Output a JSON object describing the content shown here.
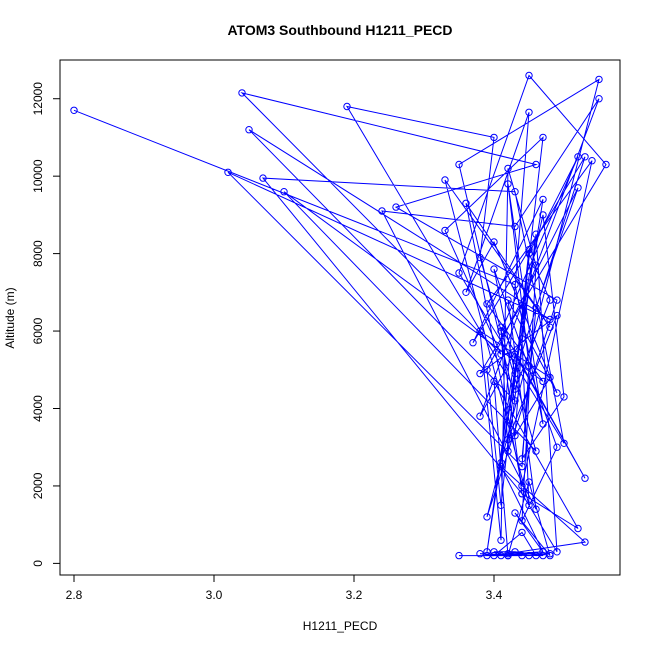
{
  "chart_data": {
    "type": "line",
    "title": "ATOM3 Southbound H1211_PECD",
    "xlabel": "H1211_PECD",
    "ylabel": "Altitude (m)",
    "xlim": [
      2.78,
      3.58
    ],
    "ylim": [
      -300,
      13000
    ],
    "xticks": [
      2.8,
      3.0,
      3.2,
      3.4
    ],
    "xtick_labels": [
      "2.8",
      "3.0",
      "3.2",
      "3.4"
    ],
    "yticks": [
      0,
      2000,
      4000,
      6000,
      8000,
      10000,
      12000
    ],
    "ytick_labels": [
      "0",
      "2000",
      "4000",
      "6000",
      "8000",
      "10000",
      "12000"
    ],
    "markers": "open-circle",
    "grid": false,
    "legend": "none",
    "color": "#0000ff",
    "series": [
      {
        "x": [
          2.8,
          3.43,
          3.47,
          3.42,
          3.45,
          3.44,
          3.02,
          3.48,
          3.05,
          3.43,
          3.35,
          3.55,
          3.39,
          3.49,
          3.26,
          3.46,
          3.04,
          3.41,
          3.33,
          3.47,
          3.42,
          3.49,
          3.38,
          3.56,
          3.45,
          3.35,
          3.5,
          3.43,
          3.07,
          3.44,
          3.41,
          3.52,
          3.45,
          3.48,
          3.43,
          3.19,
          3.4,
          3.38,
          3.46,
          3.1,
          3.47,
          3.39,
          3.54,
          3.44,
          3.36,
          3.48,
          3.33,
          3.45,
          3.44,
          3.38,
          3.55,
          3.43,
          3.24,
          3.46,
          3.42,
          3.49,
          3.4,
          3.36,
          3.45,
          3.41,
          3.47,
          3.37,
          3.53,
          3.43,
          3.4,
          3.49,
          3.44,
          3.46,
          3.42,
          3.41,
          3.38,
          3.48,
          3.43,
          3.45,
          3.41,
          3.39,
          3.52,
          3.46,
          3.44,
          3.5,
          3.47,
          3.45,
          3.39,
          3.43,
          3.53,
          3.41,
          3.42,
          3.46,
          3.49,
          3.44,
          3.52,
          3.4,
          3.42,
          3.45,
          3.48,
          3.43,
          3.47,
          3.41,
          3.53,
          3.4,
          3.44,
          3.46,
          3.42,
          3.48,
          3.45,
          3.38,
          3.47,
          3.43,
          3.4,
          3.42,
          3.35,
          3.39,
          3.47,
          3.41,
          3.44
        ],
        "y": [
          11700,
          7200,
          3600,
          9800,
          5100,
          2500,
          10100,
          6300,
          11200,
          4200,
          10300,
          12500,
          1200,
          6800,
          9200,
          10300,
          12150,
          5400,
          8600,
          11000,
          3200,
          6400,
          4900,
          10300,
          12600,
          7500,
          3100,
          9600,
          9950,
          1800,
          6000,
          10500,
          8000,
          6800,
          4500,
          11800,
          11000,
          7900,
          2900,
          9600,
          4700,
          6700,
          10400,
          2000,
          9300,
          6100,
          9900,
          1500,
          5800,
          3800,
          12000,
          8700,
          9100,
          1400,
          6800,
          4400,
          8300,
          7000,
          11650,
          2600,
          9400,
          5700,
          10500,
          4900,
          7600,
          3000,
          1100,
          7700,
          10200,
          600,
          6000,
          4800,
          3300,
          8100,
          1500,
          5000,
          9700,
          6600,
          2700,
          4300,
          9000,
          7400,
          300,
          5400,
          2200,
          6100,
          2900,
          8500,
          300,
          1800,
          900,
          4700,
          200,
          2100,
          200,
          1300,
          300,
          2500,
          550,
          200,
          800,
          200,
          250,
          250,
          200,
          250,
          200,
          300,
          300,
          200,
          200,
          200,
          300,
          200,
          200
        ]
      }
    ]
  }
}
